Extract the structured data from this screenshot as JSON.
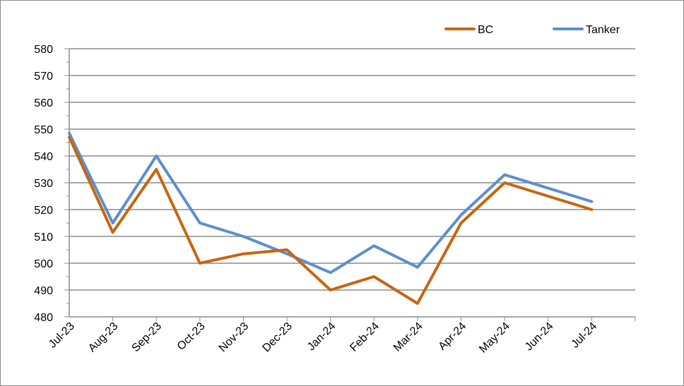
{
  "chart_data": {
    "type": "line",
    "title": "",
    "xlabel": "",
    "ylabel": "",
    "categories": [
      "Jul-23",
      "Aug-23",
      "Sep-23",
      "Oct-23",
      "Nov-23",
      "Dec-23",
      "Jan-24",
      "Feb-24",
      "Mar-24",
      "Apr-24",
      "May-24",
      "Jun-24",
      "Jul-24"
    ],
    "ylim": [
      480,
      580
    ],
    "yticks": [
      480,
      490,
      500,
      510,
      520,
      530,
      540,
      550,
      560,
      570,
      580
    ],
    "grid": true,
    "legend_position": "top-right",
    "series": [
      {
        "name": "BC",
        "color": "#c8650f",
        "values": [
          547,
          511.5,
          535,
          500,
          503.5,
          505,
          490,
          495,
          485,
          515,
          530,
          525,
          520
        ]
      },
      {
        "name": "Tanker",
        "color": "#5b8fd0",
        "values": [
          548.5,
          515,
          540,
          515,
          510,
          503.5,
          496.5,
          506.5,
          498.5,
          518,
          533,
          528,
          523
        ]
      }
    ]
  }
}
